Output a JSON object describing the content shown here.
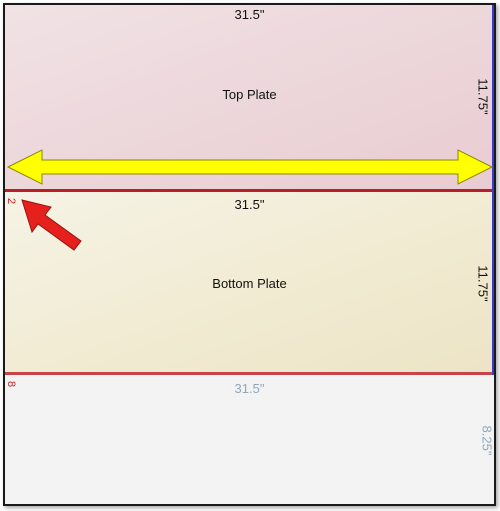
{
  "plates": {
    "top": {
      "width_label": "31.5\"",
      "height_label": "11.75\"",
      "name": "Top Plate"
    },
    "bottom": {
      "width_label": "31.5\"",
      "height_label": "11.75\"",
      "name": "Bottom Plate",
      "marker": "2"
    },
    "remaining": {
      "width_label": "31.5\"",
      "height_label": "8.25\"",
      "marker": "8"
    }
  },
  "colors": {
    "top_plate": "#ecd6da",
    "bottom_plate": "#f1ebd2",
    "cut_line": "#b81f27",
    "arrow_yellow": "#ffff00",
    "arrow_red": "#e6201d",
    "edge_blue": "#3b3bd0"
  },
  "icons": {
    "double_arrow": "yellow-double-arrow-icon",
    "pointer_arrow": "red-pointer-arrow-icon"
  }
}
